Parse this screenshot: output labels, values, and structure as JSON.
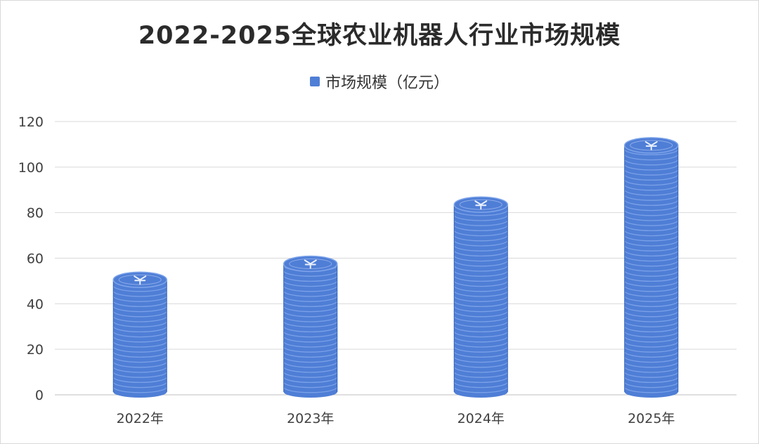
{
  "chart_data": {
    "type": "bar",
    "title": "2022-2025全球农业机器人行业市场规模",
    "categories": [
      "2022年",
      "2023年",
      "2024年",
      "2025年"
    ],
    "series": [
      {
        "name": "市场规模（亿元）",
        "values": [
          53,
          60,
          86,
          112
        ]
      }
    ],
    "ylim": [
      0,
      120
    ],
    "yticks": [
      0,
      20,
      40,
      60,
      80,
      100,
      120
    ],
    "grid": true,
    "legend_position": "top-center",
    "bar_style": "stacked-coins",
    "colors": {
      "bar": "#4f7ed6",
      "bar_edge": "#2f5fb8",
      "bar_highlight": "#7fa5ea",
      "grid": "#d9d9d9",
      "axis": "#bfbfbf"
    }
  }
}
